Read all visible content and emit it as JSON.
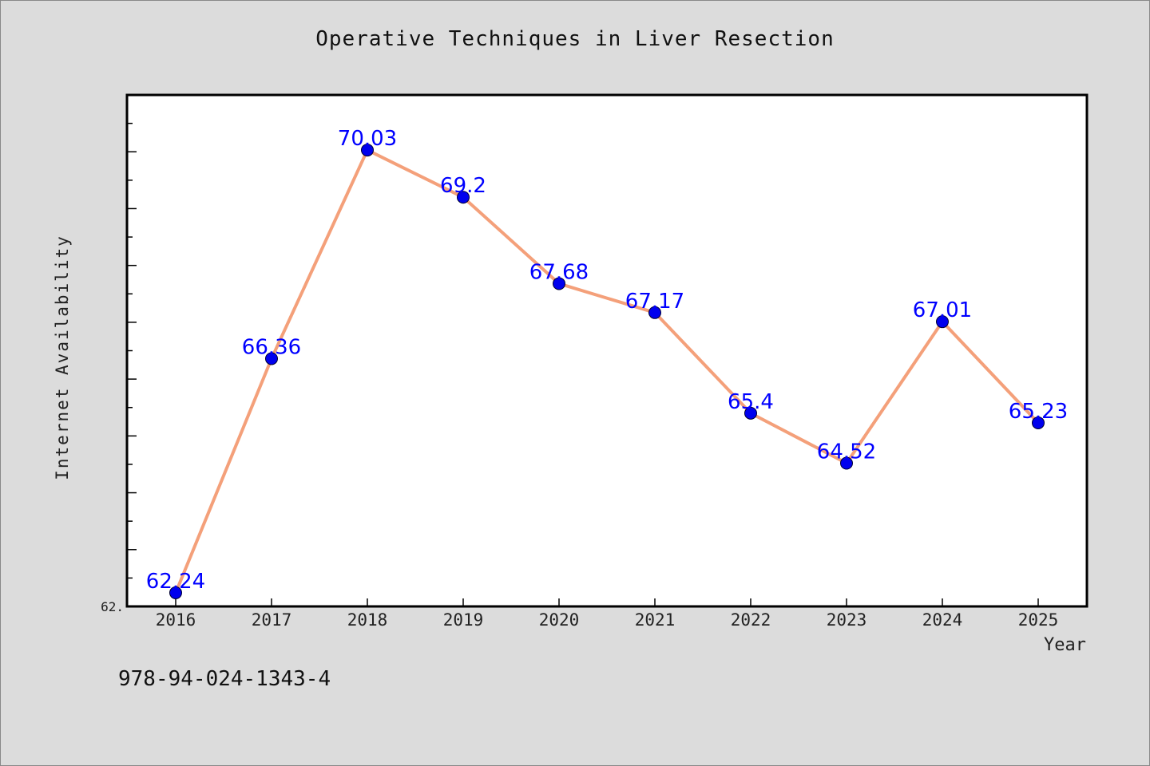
{
  "chart_data": {
    "type": "line",
    "title": "Operative Techniques in Liver Resection",
    "xlabel": "Year",
    "ylabel": "Internet Availability",
    "x": [
      "2016",
      "2017",
      "2018",
      "2019",
      "2020",
      "2021",
      "2022",
      "2023",
      "2024",
      "2025"
    ],
    "series": [
      {
        "values": [
          62.24,
          66.36,
          70.03,
          69.2,
          67.68,
          67.17,
          65.4,
          64.52,
          67.01,
          65.23
        ]
      }
    ],
    "data_labels": [
      "62.24",
      "66.36",
      "70.03",
      "69.2",
      "67.68",
      "67.17",
      "65.4",
      "64.52",
      "67.01",
      "65.23"
    ],
    "ylim": [
      62.0,
      71.0
    ],
    "y_tick_label": "62.",
    "grid": false,
    "legend": "none",
    "colors": {
      "line": "#f4a07a",
      "marker": "#0000ee",
      "label": "#0000ff",
      "background": "#dcdcdc",
      "plot_bg": "#ffffff"
    }
  },
  "footer": {
    "text": "978-94-024-1343-4"
  }
}
